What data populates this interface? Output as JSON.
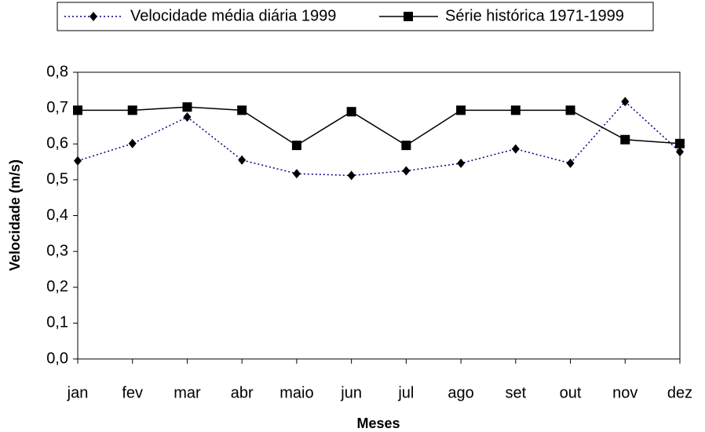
{
  "chart_data": {
    "type": "line",
    "x_label": "Meses",
    "y_label": "Velocidade  (m/s)",
    "categories": [
      "jan",
      "fev",
      "mar",
      "abr",
      "maio",
      "jun",
      "jul",
      "ago",
      "set",
      "out",
      "nov",
      "dez"
    ],
    "series": [
      {
        "name": "Velocidade média diária 1999",
        "color": "#000080",
        "line_style": "dotted",
        "marker": "diamond",
        "values": [
          0.553,
          0.601,
          0.675,
          0.555,
          0.517,
          0.512,
          0.525,
          0.546,
          0.586,
          0.546,
          0.718,
          0.578
        ]
      },
      {
        "name": "Série histórica 1971-1999",
        "color": "#000000",
        "line_style": "solid",
        "marker": "square",
        "values": [
          0.694,
          0.694,
          0.703,
          0.694,
          0.596,
          0.69,
          0.596,
          0.694,
          0.694,
          0.694,
          0.612,
          0.601
        ]
      }
    ],
    "ylim": [
      0,
      0.8
    ],
    "yticks": [
      {
        "value": 0,
        "label": "0,0"
      },
      {
        "value": 0.1,
        "label": "0,1"
      },
      {
        "value": 0.2,
        "label": "0,2"
      },
      {
        "value": 0.3,
        "label": "0,3"
      },
      {
        "value": 0.4,
        "label": "0,4"
      },
      {
        "value": 0.5,
        "label": "0,5"
      },
      {
        "value": 0.6,
        "label": "0,6"
      },
      {
        "value": 0.7,
        "label": "0,7"
      },
      {
        "value": 0.8,
        "label": "0,8"
      }
    ],
    "legend": "top",
    "grid": false
  }
}
